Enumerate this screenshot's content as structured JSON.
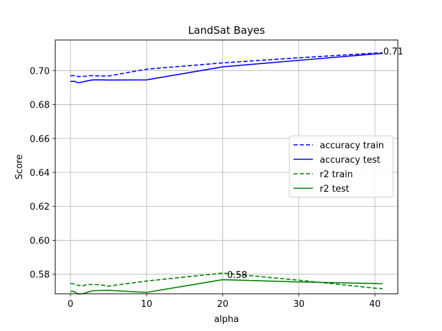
{
  "chart_data": {
    "type": "line",
    "title": "LandSat Bayes",
    "xlabel": "alpha",
    "ylabel": "Score",
    "xlim": [
      -2,
      43
    ],
    "ylim": [
      0.5685,
      0.718
    ],
    "xticks": [
      0,
      10,
      20,
      30,
      40
    ],
    "xtick_labels": [
      "0",
      "10",
      "20",
      "30",
      "40"
    ],
    "yticks": [
      0.58,
      0.6,
      0.62,
      0.64,
      0.66,
      0.68,
      0.7
    ],
    "ytick_labels": [
      "0.58",
      "0.60",
      "0.62",
      "0.64",
      "0.66",
      "0.68",
      "0.70"
    ],
    "grid": true,
    "legend_position": "center-right",
    "series": [
      {
        "name": "accuracy train",
        "color": "#0000ff",
        "style": "dashed",
        "x": [
          0,
          0.5,
          1,
          1.5,
          2,
          2.5,
          3,
          4,
          5,
          10,
          20,
          30,
          40,
          41
        ],
        "y": [
          0.697,
          0.697,
          0.6965,
          0.6965,
          0.6967,
          0.697,
          0.697,
          0.6968,
          0.6968,
          0.7008,
          0.7045,
          0.7075,
          0.7103,
          0.7105
        ]
      },
      {
        "name": "accuracy test",
        "color": "#0000ff",
        "style": "solid",
        "x": [
          0,
          0.5,
          1,
          1.5,
          2,
          2.5,
          3,
          4,
          5,
          10,
          20,
          30,
          40,
          41
        ],
        "y": [
          0.6935,
          0.6937,
          0.6928,
          0.6932,
          0.6937,
          0.6942,
          0.6945,
          0.6945,
          0.6944,
          0.6945,
          0.7022,
          0.706,
          0.7098,
          0.7101
        ]
      },
      {
        "name": "r2 train",
        "color": "#008000",
        "style": "dashed",
        "x": [
          0,
          0.5,
          1,
          1.5,
          2,
          2.5,
          3,
          4,
          5,
          10,
          20,
          30,
          40,
          41
        ],
        "y": [
          0.5745,
          0.5743,
          0.5735,
          0.573,
          0.5737,
          0.574,
          0.574,
          0.5738,
          0.573,
          0.576,
          0.5807,
          0.5765,
          0.5718,
          0.5715
        ]
      },
      {
        "name": "r2 test",
        "color": "#008000",
        "style": "solid",
        "x": [
          0,
          0.5,
          1,
          1.5,
          2,
          2.5,
          3,
          4,
          5,
          10,
          20,
          30,
          40,
          41
        ],
        "y": [
          0.57,
          0.5698,
          0.5683,
          0.5685,
          0.569,
          0.5698,
          0.5703,
          0.5704,
          0.5705,
          0.5693,
          0.5768,
          0.5755,
          0.5745,
          0.5744
        ]
      }
    ],
    "annotations": [
      {
        "text": "0.71",
        "x": 41,
        "y": 0.711
      },
      {
        "text": "0.58",
        "x": 20.5,
        "y": 0.5795
      }
    ]
  }
}
